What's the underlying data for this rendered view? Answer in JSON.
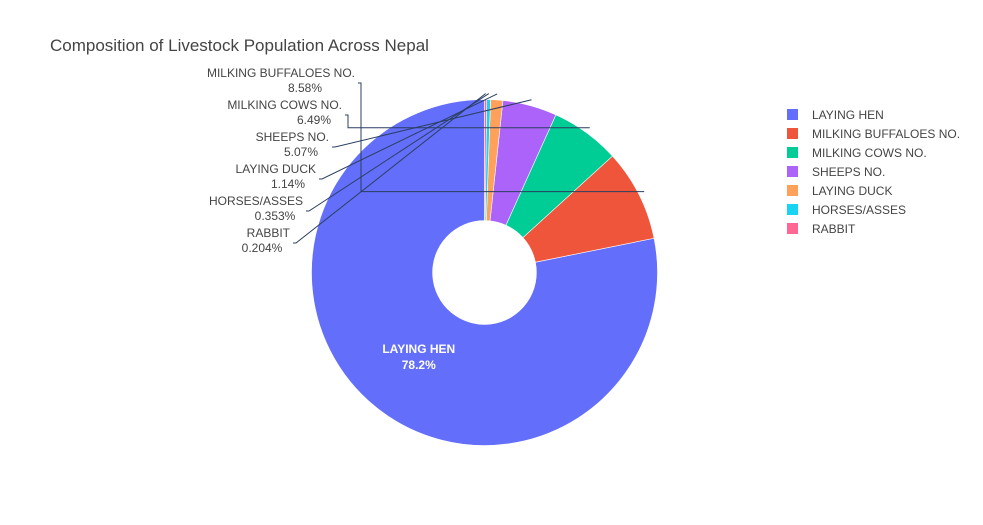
{
  "chart_data": {
    "type": "pie",
    "title": "Composition of Livestock Population Across Nepal",
    "hole": 0.3,
    "legend_position": "right",
    "slices": [
      {
        "label": "LAYING HEN",
        "percent_label": "78.2%",
        "value": 78.2,
        "color": "#636efa",
        "text_position": "inside"
      },
      {
        "label": "MILKING BUFFALOES NO.",
        "percent_label": "8.58%",
        "value": 8.58,
        "color": "#EF553B",
        "text_position": "outside"
      },
      {
        "label": "MILKING COWS NO.",
        "percent_label": "6.49%",
        "value": 6.49,
        "color": "#00cc96",
        "text_position": "outside"
      },
      {
        "label": "SHEEPS NO.",
        "percent_label": "5.07%",
        "value": 5.07,
        "color": "#ab63fa",
        "text_position": "outside"
      },
      {
        "label": "LAYING DUCK",
        "percent_label": "1.14%",
        "value": 1.14,
        "color": "#FFA15A",
        "text_position": "outside"
      },
      {
        "label": "HORSES/ASSES",
        "percent_label": "0.353%",
        "value": 0.353,
        "color": "#19d3f3",
        "text_position": "outside"
      },
      {
        "label": "RABBIT",
        "percent_label": "0.204%",
        "value": 0.204,
        "color": "#FF6692",
        "text_position": "outside"
      }
    ]
  }
}
